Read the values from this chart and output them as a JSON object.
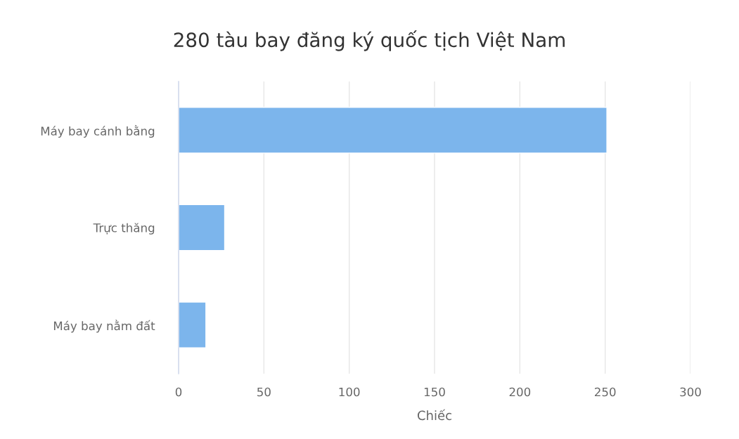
{
  "chart_data": {
    "type": "bar",
    "orientation": "horizontal",
    "title": "280 tàu bay đăng ký quốc tịch Việt Nam",
    "xlabel": "Chiếc",
    "categories": [
      "Máy bay cánh bằng",
      "Trực thăng",
      "Máy bay nằm đất"
    ],
    "values": [
      251,
      27,
      16
    ],
    "color": "#7cb5ec",
    "xlim": [
      0,
      300
    ],
    "xticks": [
      0,
      50,
      100,
      150,
      200,
      250,
      300
    ],
    "grid": "x"
  }
}
